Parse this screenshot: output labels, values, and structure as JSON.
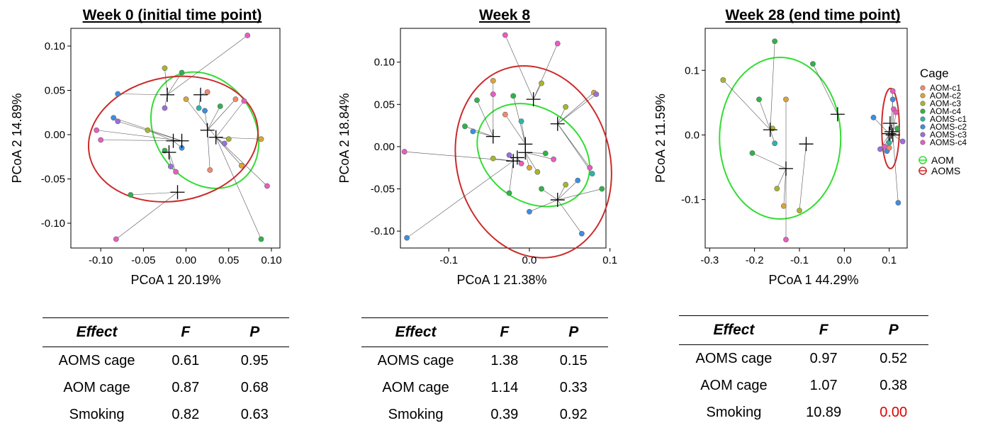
{
  "colors": {
    "AOM-c1": "#f08a6a",
    "AOM-c2": "#d9a53a",
    "AOM-c3": "#a8b52a",
    "AOM-c4": "#2fb34a",
    "AOMS-c1": "#2bb5a8",
    "AOMS-c2": "#3d8ee0",
    "AOMS-c3": "#9b6ee0",
    "AOMS-c4": "#e85cc0",
    "AOM_ellipse": "#33dd33",
    "AOMS_ellipse": "#cc2a2a",
    "significant": "#e00000"
  },
  "legend": {
    "title": "Cage",
    "cages": [
      "AOM-c1",
      "AOM-c2",
      "AOM-c3",
      "AOM-c4",
      "AOMS-c1",
      "AOMS-c2",
      "AOMS-c3",
      "AOMS-c4"
    ],
    "groups": [
      "AOM",
      "AOMS"
    ]
  },
  "chart_data": [
    {
      "type": "scatter",
      "title": "Week 0 (initial time point)",
      "xlabel": "PCoA 1 20.19%",
      "ylabel": "PCoA 2 14.89%",
      "xlim": [
        -0.135,
        0.11
      ],
      "ylim": [
        -0.128,
        0.12
      ],
      "xticks": [
        "-0.10",
        "-0.05",
        "0.00",
        "0.05",
        "0.10"
      ],
      "xtick_values": [
        -0.1,
        -0.05,
        0.0,
        0.05,
        0.1
      ],
      "yticks": [
        "0.10",
        "0.05",
        "0.00",
        "-0.05",
        "-0.10"
      ],
      "ytick_values": [
        0.1,
        0.05,
        0.0,
        -0.05,
        -0.1
      ],
      "centroids": [
        [
          -0.022,
          0.045
        ],
        [
          0.017,
          0.045
        ],
        [
          -0.005,
          -0.007
        ],
        [
          -0.015,
          -0.007
        ],
        [
          -0.02,
          -0.02
        ],
        [
          0.025,
          0.005
        ],
        [
          0.035,
          -0.003
        ],
        [
          -0.01,
          -0.065
        ]
      ],
      "points": [
        {
          "x": 0.072,
          "y": 0.112,
          "c": 7,
          "k": 0
        },
        {
          "x": -0.08,
          "y": 0.046,
          "c": 5,
          "k": 0
        },
        {
          "x": -0.025,
          "y": 0.075,
          "c": 2,
          "k": 0
        },
        {
          "x": -0.005,
          "y": 0.07,
          "c": 3,
          "k": 0
        },
        {
          "x": 0.025,
          "y": 0.048,
          "c": 0,
          "k": 1
        },
        {
          "x": -0.085,
          "y": 0.019,
          "c": 5,
          "k": 2
        },
        {
          "x": -0.08,
          "y": 0.015,
          "c": 6,
          "k": 2
        },
        {
          "x": -0.105,
          "y": 0.005,
          "c": 7,
          "k": 2
        },
        {
          "x": -0.1,
          "y": -0.006,
          "c": 7,
          "k": 2
        },
        {
          "x": -0.045,
          "y": 0.005,
          "c": 2,
          "k": 3
        },
        {
          "x": 0.0,
          "y": 0.04,
          "c": 1,
          "k": 6
        },
        {
          "x": 0.015,
          "y": 0.03,
          "c": 4,
          "k": 1
        },
        {
          "x": 0.022,
          "y": 0.027,
          "c": 5,
          "k": 5
        },
        {
          "x": -0.025,
          "y": 0.03,
          "c": 6,
          "k": 0
        },
        {
          "x": 0.04,
          "y": 0.032,
          "c": 3,
          "k": 5
        },
        {
          "x": 0.058,
          "y": 0.04,
          "c": 0,
          "k": 5
        },
        {
          "x": 0.068,
          "y": 0.038,
          "c": 7,
          "k": 6
        },
        {
          "x": -0.025,
          "y": -0.018,
          "c": 3,
          "k": 4
        },
        {
          "x": -0.005,
          "y": -0.015,
          "c": 5,
          "k": 3
        },
        {
          "x": -0.018,
          "y": -0.036,
          "c": 6,
          "k": 4
        },
        {
          "x": -0.012,
          "y": -0.042,
          "c": 7,
          "k": 4
        },
        {
          "x": 0.045,
          "y": -0.01,
          "c": 6,
          "k": 6
        },
        {
          "x": 0.05,
          "y": -0.005,
          "c": 2,
          "k": 6
        },
        {
          "x": 0.028,
          "y": -0.04,
          "c": 0,
          "k": 5
        },
        {
          "x": 0.065,
          "y": -0.035,
          "c": 1,
          "k": 6
        },
        {
          "x": 0.088,
          "y": -0.005,
          "c": 1,
          "k": 6
        },
        {
          "x": 0.095,
          "y": -0.058,
          "c": 7,
          "k": 6
        },
        {
          "x": 0.088,
          "y": -0.118,
          "c": 3,
          "k": 6
        },
        {
          "x": -0.065,
          "y": -0.068,
          "c": 3,
          "k": 7
        },
        {
          "x": -0.082,
          "y": -0.118,
          "c": 7,
          "k": 7
        }
      ],
      "ellipses": [
        {
          "group": "AOM",
          "cx": 0.022,
          "cy": 0.005,
          "rx": 0.058,
          "ry": 0.07,
          "angle": 35
        },
        {
          "group": "AOMS",
          "cx": -0.015,
          "cy": -0.005,
          "rx": 0.1,
          "ry": 0.07,
          "angle": 10
        }
      ]
    },
    {
      "type": "scatter",
      "title": "Week 8",
      "xlabel": "PCoA 1 21.38%",
      "ylabel": "PCoA 2 18.84%",
      "xlim": [
        -0.16,
        0.095
      ],
      "ylim": [
        -0.12,
        0.14
      ],
      "xticks": [
        "-0.1",
        "0.0",
        "0.1"
      ],
      "xtick_values": [
        -0.1,
        0.0,
        0.1
      ],
      "yticks": [
        "0.10",
        "0.05",
        "0.00",
        "-0.05",
        "-0.10"
      ],
      "ytick_values": [
        0.1,
        0.05,
        0.0,
        -0.05,
        -0.1
      ],
      "centroids": [
        [
          -0.045,
          0.012
        ],
        [
          0.005,
          0.056
        ],
        [
          -0.005,
          0.003
        ],
        [
          -0.005,
          -0.007
        ],
        [
          -0.015,
          -0.013
        ],
        [
          -0.02,
          -0.017
        ],
        [
          0.035,
          0.027
        ],
        [
          0.035,
          -0.063
        ]
      ],
      "points": [
        {
          "x": -0.03,
          "y": 0.132,
          "c": 7,
          "k": 1
        },
        {
          "x": 0.035,
          "y": 0.122,
          "c": 7,
          "k": 1
        },
        {
          "x": -0.045,
          "y": 0.078,
          "c": 1,
          "k": 0
        },
        {
          "x": 0.015,
          "y": 0.075,
          "c": 2,
          "k": 1
        },
        {
          "x": -0.045,
          "y": 0.062,
          "c": 7,
          "k": 0
        },
        {
          "x": -0.065,
          "y": 0.055,
          "c": 3,
          "k": 0
        },
        {
          "x": -0.02,
          "y": 0.06,
          "c": 3,
          "k": 2
        },
        {
          "x": 0.08,
          "y": 0.064,
          "c": 1,
          "k": 6
        },
        {
          "x": 0.083,
          "y": 0.062,
          "c": 6,
          "k": 6
        },
        {
          "x": 0.045,
          "y": 0.047,
          "c": 2,
          "k": 6
        },
        {
          "x": -0.08,
          "y": 0.024,
          "c": 3,
          "k": 0
        },
        {
          "x": -0.07,
          "y": 0.018,
          "c": 5,
          "k": 0
        },
        {
          "x": -0.03,
          "y": 0.038,
          "c": 0,
          "k": 2
        },
        {
          "x": -0.01,
          "y": 0.03,
          "c": 4,
          "k": 2
        },
        {
          "x": -0.045,
          "y": -0.014,
          "c": 2,
          "k": 5
        },
        {
          "x": -0.025,
          "y": -0.01,
          "c": 6,
          "k": 5
        },
        {
          "x": -0.01,
          "y": -0.02,
          "c": 7,
          "k": 4
        },
        {
          "x": 0.0,
          "y": -0.025,
          "c": 1,
          "k": 3
        },
        {
          "x": 0.02,
          "y": -0.008,
          "c": 3,
          "k": 3
        },
        {
          "x": 0.03,
          "y": -0.015,
          "c": 7,
          "k": 3
        },
        {
          "x": 0.075,
          "y": -0.025,
          "c": 7,
          "k": 6
        },
        {
          "x": 0.078,
          "y": -0.032,
          "c": 4,
          "k": 6
        },
        {
          "x": 0.045,
          "y": -0.045,
          "c": 2,
          "k": 7
        },
        {
          "x": 0.06,
          "y": -0.04,
          "c": 5,
          "k": 7
        },
        {
          "x": 0.09,
          "y": -0.05,
          "c": 3,
          "k": 7
        },
        {
          "x": 0.015,
          "y": -0.05,
          "c": 3,
          "k": 7
        },
        {
          "x": -0.025,
          "y": -0.055,
          "c": 3,
          "k": 5
        },
        {
          "x": 0.0,
          "y": -0.077,
          "c": 5,
          "k": 7
        },
        {
          "x": 0.065,
          "y": -0.103,
          "c": 5,
          "k": 7
        },
        {
          "x": -0.155,
          "y": -0.006,
          "c": 7,
          "k": 5
        },
        {
          "x": -0.152,
          "y": -0.108,
          "c": 5,
          "k": 5
        },
        {
          "x": 0.01,
          "y": -0.03,
          "c": 2,
          "k": 3
        }
      ],
      "ellipses": [
        {
          "group": "AOM",
          "cx": 0.005,
          "cy": -0.01,
          "rx": 0.075,
          "ry": 0.055,
          "angle": -35
        },
        {
          "group": "AOMS",
          "cx": 0.005,
          "cy": -0.018,
          "rx": 0.095,
          "ry": 0.115,
          "angle": 15
        }
      ]
    },
    {
      "type": "scatter",
      "title": "Week 28 (end time point)",
      "xlabel": "PCoA 1 44.29%",
      "ylabel": "PCoA 2 11.59%",
      "xlim": [
        -0.31,
        0.14
      ],
      "ylim": [
        -0.175,
        0.165
      ],
      "xticks": [
        "-0.3",
        "-0.2",
        "-0.1",
        "0.0",
        "0.1"
      ],
      "xtick_values": [
        -0.3,
        -0.2,
        -0.1,
        0.0,
        0.1
      ],
      "yticks": [
        "0.1",
        "0.0",
        "-0.1"
      ],
      "ytick_values": [
        0.1,
        0.0,
        -0.1
      ],
      "centroids": [
        [
          -0.165,
          0.008
        ],
        [
          -0.13,
          -0.052
        ],
        [
          -0.085,
          -0.014
        ],
        [
          -0.015,
          0.032
        ],
        [
          0.1,
          0.002
        ],
        [
          0.105,
          0.005
        ],
        [
          0.108,
          0.0
        ],
        [
          0.102,
          0.018
        ]
      ],
      "points": [
        {
          "x": -0.27,
          "y": 0.085,
          "c": 2,
          "k": 0
        },
        {
          "x": -0.155,
          "y": 0.145,
          "c": 3,
          "k": 0
        },
        {
          "x": -0.19,
          "y": 0.055,
          "c": 3,
          "k": 0
        },
        {
          "x": -0.13,
          "y": 0.055,
          "c": 1,
          "k": 1
        },
        {
          "x": -0.07,
          "y": 0.11,
          "c": 3,
          "k": 3
        },
        {
          "x": -0.16,
          "y": 0.01,
          "c": 2,
          "k": 0
        },
        {
          "x": -0.155,
          "y": -0.013,
          "c": 4,
          "k": 0
        },
        {
          "x": -0.205,
          "y": -0.028,
          "c": 3,
          "k": 1
        },
        {
          "x": -0.15,
          "y": -0.083,
          "c": 2,
          "k": 1
        },
        {
          "x": -0.135,
          "y": -0.11,
          "c": 1,
          "k": 1
        },
        {
          "x": -0.1,
          "y": -0.117,
          "c": 2,
          "k": 2
        },
        {
          "x": -0.13,
          "y": -0.162,
          "c": 7,
          "k": 1
        },
        {
          "x": 0.065,
          "y": 0.027,
          "c": 5,
          "k": 4
        },
        {
          "x": 0.108,
          "y": 0.068,
          "c": 7,
          "k": 5
        },
        {
          "x": 0.108,
          "y": 0.055,
          "c": 5,
          "k": 5
        },
        {
          "x": 0.11,
          "y": 0.04,
          "c": 7,
          "k": 6
        },
        {
          "x": 0.115,
          "y": 0.035,
          "c": 7,
          "k": 6
        },
        {
          "x": 0.118,
          "y": 0.01,
          "c": 3,
          "k": 6
        },
        {
          "x": 0.09,
          "y": -0.018,
          "c": 7,
          "k": 4
        },
        {
          "x": 0.08,
          "y": -0.022,
          "c": 6,
          "k": 4
        },
        {
          "x": 0.1,
          "y": -0.012,
          "c": 4,
          "k": 5
        },
        {
          "x": 0.095,
          "y": -0.025,
          "c": 5,
          "k": 4
        },
        {
          "x": 0.13,
          "y": -0.01,
          "c": 6,
          "k": 6
        },
        {
          "x": 0.12,
          "y": -0.105,
          "c": 5,
          "k": 6
        },
        {
          "x": 0.1,
          "y": -0.02,
          "c": 0,
          "k": 5
        }
      ],
      "ellipses": [
        {
          "group": "AOM",
          "cx": -0.143,
          "cy": -0.005,
          "rx": 0.135,
          "ry": 0.125,
          "angle": 0
        },
        {
          "group": "AOMS",
          "cx": 0.103,
          "cy": 0.01,
          "rx": 0.0195,
          "ry": 0.062,
          "angle": 0
        }
      ]
    }
  ],
  "tables": [
    {
      "headers": [
        "Effect",
        "F",
        "P"
      ],
      "rows": [
        [
          "AOMS cage",
          "0.61",
          "0.95"
        ],
        [
          "AOM cage",
          "0.87",
          "0.68"
        ],
        [
          "Smoking",
          "0.82",
          "0.63"
        ]
      ]
    },
    {
      "headers": [
        "Effect",
        "F",
        "P"
      ],
      "rows": [
        [
          "AOMS cage",
          "1.38",
          "0.15"
        ],
        [
          "AOM cage",
          "1.14",
          "0.33"
        ],
        [
          "Smoking",
          "0.39",
          "0.92"
        ]
      ]
    },
    {
      "headers": [
        "Effect",
        "F",
        "P"
      ],
      "rows": [
        [
          "AOMS cage",
          "0.97",
          "0.52"
        ],
        [
          "AOM cage",
          "1.07",
          "0.38"
        ],
        [
          "Smoking",
          "10.89",
          "0.00"
        ]
      ]
    }
  ]
}
